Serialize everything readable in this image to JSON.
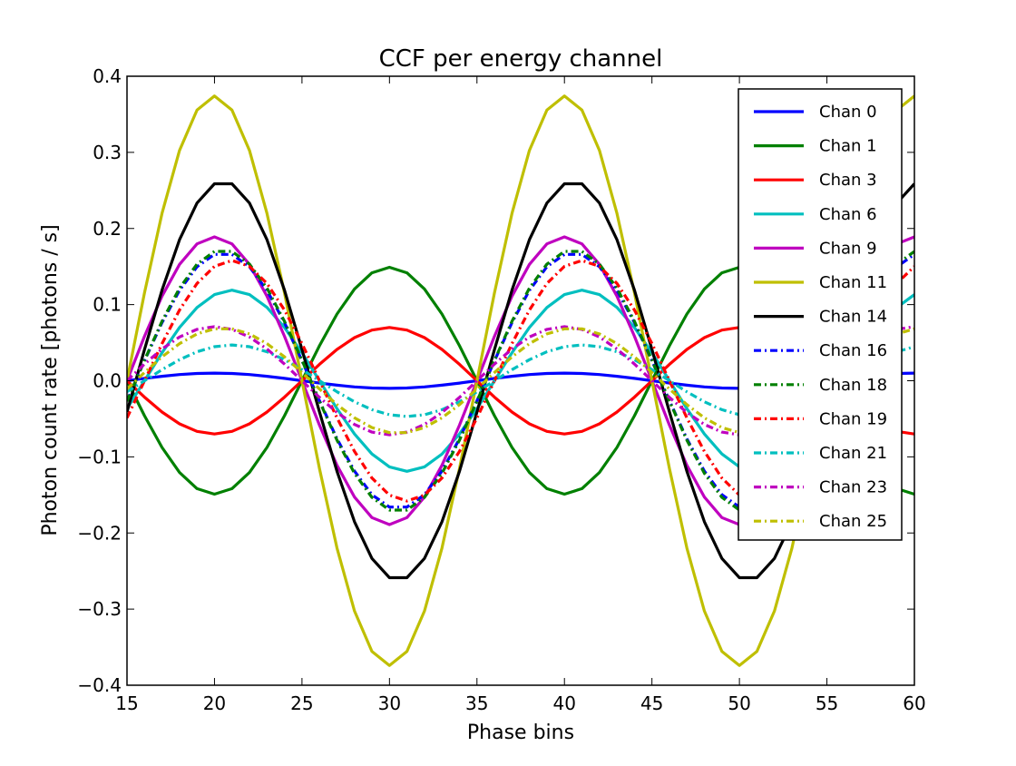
{
  "chart_data": {
    "type": "line",
    "title": "CCF per energy channel",
    "xlabel": "Phase bins",
    "ylabel": "Photon count rate [photons / s]",
    "xlim": [
      15,
      60
    ],
    "ylim": [
      -0.4,
      0.4
    ],
    "xticks": [
      "15",
      "20",
      "25",
      "30",
      "35",
      "40",
      "45",
      "50",
      "55",
      "60"
    ],
    "yticks": [
      "−0.4",
      "−0.3",
      "−0.2",
      "−0.1",
      "0.0",
      "0.1",
      "0.2",
      "0.3",
      "0.4"
    ],
    "grid": false,
    "legend_position": "upper right",
    "x": [
      15,
      16,
      17,
      18,
      19,
      20,
      21,
      22,
      23,
      24,
      25,
      26,
      27,
      28,
      29,
      30,
      31,
      32,
      33,
      34,
      35,
      36,
      37,
      38,
      39,
      40,
      41,
      42,
      43,
      44,
      45,
      46,
      47,
      48,
      49,
      50,
      51,
      52,
      53,
      54,
      55,
      56,
      57,
      58,
      59,
      60
    ],
    "series": [
      {
        "name": "Chan 0",
        "color": "#0000ff",
        "dash": "solid",
        "amp": 0.01,
        "phase": 0.0
      },
      {
        "name": "Chan 1",
        "color": "#008000",
        "dash": "solid",
        "amp": 0.149,
        "phase": 3.1416
      },
      {
        "name": "Chan 3",
        "color": "#ff0000",
        "dash": "solid",
        "amp": 0.07,
        "phase": 3.1416
      },
      {
        "name": "Chan 6",
        "color": "#00bfbf",
        "dash": "solid",
        "amp": 0.119,
        "phase": -0.3142
      },
      {
        "name": "Chan 9",
        "color": "#bf00bf",
        "dash": "solid",
        "amp": 0.189,
        "phase": 0.0
      },
      {
        "name": "Chan 11",
        "color": "#bfbf00",
        "dash": "solid",
        "amp": 0.374,
        "phase": 0.0
      },
      {
        "name": "Chan 14",
        "color": "#000000",
        "dash": "solid",
        "amp": 0.262,
        "phase": -0.1571
      },
      {
        "name": "Chan 16",
        "color": "#0000ff",
        "dash": "dashdot",
        "amp": 0.168,
        "phase": -0.1571
      },
      {
        "name": "Chan 18",
        "color": "#008000",
        "dash": "dashdot",
        "amp": 0.172,
        "phase": -0.1571
      },
      {
        "name": "Chan 19",
        "color": "#ff0000",
        "dash": "dashdot",
        "amp": 0.158,
        "phase": -0.3142
      },
      {
        "name": "Chan 21",
        "color": "#00bfbf",
        "dash": "dashdot",
        "amp": 0.047,
        "phase": -0.3142
      },
      {
        "name": "Chan 23",
        "color": "#bf00bf",
        "dash": "dashdot",
        "amp": 0.071,
        "phase": 0.0
      },
      {
        "name": "Chan 25",
        "color": "#bfbf00",
        "dash": "dashdot",
        "amp": 0.069,
        "phase": -0.1571
      }
    ]
  }
}
